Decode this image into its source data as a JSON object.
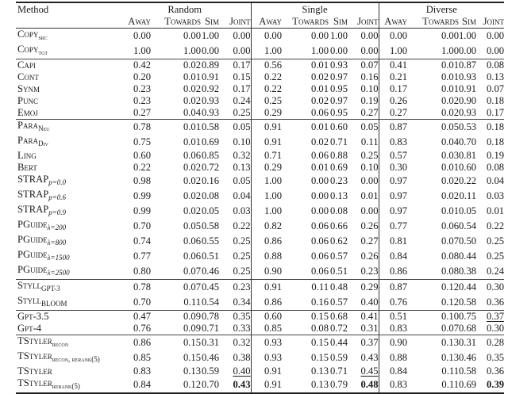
{
  "header": {
    "method": "Method",
    "groups": [
      "Random",
      "Single",
      "Diverse"
    ],
    "metrics": [
      "Away",
      "Towards",
      "Sim",
      "Joint"
    ]
  },
  "groups_of_rows": [
    [
      {
        "base": "Copy",
        "sub": "src",
        "values": [
          "0.00",
          "0.00",
          "1.00",
          "0.00",
          "0.00",
          "0.00",
          "1.00",
          "0.00",
          "0.00",
          "0.00",
          "1.00",
          "0.00"
        ]
      },
      {
        "base": "Copy",
        "sub": "tgt",
        "values": [
          "1.00",
          "1.00",
          "0.00",
          "0.00",
          "1.00",
          "1.00",
          "0.00",
          "0.00",
          "1.00",
          "1.00",
          "0.00",
          "0.00"
        ]
      }
    ],
    [
      {
        "base": "Capi",
        "values": [
          "0.42",
          "0.02",
          "0.89",
          "0.17",
          "0.56",
          "0.01",
          "0.93",
          "0.07",
          "0.41",
          "0.01",
          "0.87",
          "0.08"
        ]
      },
      {
        "base": "Cont",
        "values": [
          "0.20",
          "0.01",
          "0.91",
          "0.15",
          "0.22",
          "0.02",
          "0.97",
          "0.16",
          "0.21",
          "0.01",
          "0.93",
          "0.13"
        ]
      },
      {
        "base": "Synm",
        "values": [
          "0.23",
          "0.02",
          "0.92",
          "0.17",
          "0.22",
          "0.01",
          "0.95",
          "0.10",
          "0.17",
          "0.01",
          "0.91",
          "0.07"
        ]
      },
      {
        "base": "Punc",
        "values": [
          "0.23",
          "0.02",
          "0.93",
          "0.24",
          "0.25",
          "0.02",
          "0.97",
          "0.19",
          "0.26",
          "0.02",
          "0.90",
          "0.18"
        ]
      },
      {
        "base": "Emoj",
        "values": [
          "0.27",
          "0.04",
          "0.93",
          "0.25",
          "0.29",
          "0.06",
          "0.95",
          "0.27",
          "0.27",
          "0.02",
          "0.93",
          "0.17"
        ]
      }
    ],
    [
      {
        "base": "Para",
        "sub": "Neu",
        "values": [
          "0.78",
          "0.01",
          "0.58",
          "0.05",
          "0.91",
          "0.01",
          "0.60",
          "0.05",
          "0.87",
          "0.05",
          "0.53",
          "0.18"
        ]
      },
      {
        "base": "Para",
        "sub": "Div",
        "values": [
          "0.75",
          "0.01",
          "0.69",
          "0.10",
          "0.91",
          "0.02",
          "0.71",
          "0.11",
          "0.83",
          "0.04",
          "0.70",
          "0.18"
        ]
      },
      {
        "base": "Ling",
        "values": [
          "0.60",
          "0.06",
          "0.85",
          "0.32",
          "0.71",
          "0.06",
          "0.88",
          "0.25",
          "0.57",
          "0.03",
          "0.81",
          "0.19"
        ]
      },
      {
        "base": "Bert",
        "values": [
          "0.22",
          "0.02",
          "0.72",
          "0.13",
          "0.29",
          "0.01",
          "0.69",
          "0.10",
          "0.30",
          "0.01",
          "0.60",
          "0.08"
        ]
      },
      {
        "base": "STRAP",
        "sub": "p=0.0",
        "math": true,
        "values": [
          "0.98",
          "0.02",
          "0.16",
          "0.05",
          "1.00",
          "0.00",
          "0.23",
          "0.00",
          "0.97",
          "0.02",
          "0.22",
          "0.04"
        ]
      },
      {
        "base": "STRAP",
        "sub": "p=0.6",
        "math": true,
        "values": [
          "0.99",
          "0.02",
          "0.08",
          "0.04",
          "1.00",
          "0.00",
          "0.13",
          "0.01",
          "0.97",
          "0.02",
          "0.11",
          "0.03"
        ]
      },
      {
        "base": "STRAP",
        "sub": "p=0.9",
        "math": true,
        "values": [
          "0.99",
          "0.02",
          "0.05",
          "0.03",
          "1.00",
          "0.00",
          "0.08",
          "0.00",
          "0.97",
          "0.01",
          "0.05",
          "0.01"
        ]
      },
      {
        "base": "PGuide",
        "sub": "λ=200",
        "math": true,
        "values": [
          "0.70",
          "0.05",
          "0.58",
          "0.22",
          "0.82",
          "0.06",
          "0.66",
          "0.26",
          "0.77",
          "0.06",
          "0.54",
          "0.22"
        ]
      },
      {
        "base": "PGuide",
        "sub": "λ=800",
        "math": true,
        "values": [
          "0.74",
          "0.06",
          "0.55",
          "0.25",
          "0.86",
          "0.06",
          "0.62",
          "0.27",
          "0.81",
          "0.07",
          "0.50",
          "0.25"
        ]
      },
      {
        "base": "PGuide",
        "sub": "λ=1500",
        "math": true,
        "values": [
          "0.77",
          "0.06",
          "0.51",
          "0.25",
          "0.88",
          "0.06",
          "0.57",
          "0.26",
          "0.84",
          "0.08",
          "0.44",
          "0.25"
        ]
      },
      {
        "base": "PGuide",
        "sub": "λ=2500",
        "math": true,
        "values": [
          "0.80",
          "0.07",
          "0.46",
          "0.25",
          "0.90",
          "0.06",
          "0.51",
          "0.23",
          "0.86",
          "0.08",
          "0.38",
          "0.24"
        ]
      }
    ],
    [
      {
        "base": "Styll",
        "sub": "GPT-3",
        "values": [
          "0.78",
          "0.07",
          "0.45",
          "0.23",
          "0.91",
          "0.11",
          "0.48",
          "0.29",
          "0.87",
          "0.12",
          "0.44",
          "0.30"
        ]
      },
      {
        "base": "Styll",
        "sub": "BLOOM",
        "values": [
          "0.70",
          "0.11",
          "0.54",
          "0.34",
          "0.86",
          "0.16",
          "0.57",
          "0.40",
          "0.76",
          "0.12",
          "0.58",
          "0.36"
        ]
      }
    ],
    [
      {
        "base": "Gpt-3.5",
        "values": [
          "0.47",
          "0.09",
          "0.78",
          "0.35",
          "0.60",
          "0.15",
          "0.68",
          "0.41",
          "0.51",
          "0.10",
          "0.75",
          "0.37"
        ],
        "underline": [
          11
        ]
      },
      {
        "base": "Gpt-4",
        "values": [
          "0.76",
          "0.09",
          "0.71",
          "0.33",
          "0.85",
          "0.08",
          "0.72",
          "0.31",
          "0.83",
          "0.07",
          "0.68",
          "0.30"
        ]
      }
    ],
    [
      {
        "base": "TStyler",
        "sub": "recon",
        "values": [
          "0.86",
          "0.15",
          "0.31",
          "0.32",
          "0.93",
          "0.15",
          "0.44",
          "0.37",
          "0.90",
          "0.13",
          "0.31",
          "0.28"
        ]
      },
      {
        "base": "TStyler",
        "sub": "recon, rerank(5)",
        "values": [
          "0.85",
          "0.15",
          "0.46",
          "0.38",
          "0.93",
          "0.15",
          "0.59",
          "0.43",
          "0.88",
          "0.13",
          "0.46",
          "0.35"
        ]
      },
      {
        "base": "TStyler",
        "values": [
          "0.83",
          "0.13",
          "0.59",
          "0.40",
          "0.91",
          "0.13",
          "0.71",
          "0.45",
          "0.84",
          "0.11",
          "0.58",
          "0.36"
        ],
        "underline": [
          3,
          7
        ]
      },
      {
        "base": "TStyler",
        "sub": "rerank(5)",
        "values": [
          "0.84",
          "0.12",
          "0.70",
          "0.43",
          "0.91",
          "0.13",
          "0.79",
          "0.48",
          "0.83",
          "0.11",
          "0.69",
          "0.39"
        ],
        "bold": [
          3,
          7,
          11
        ]
      }
    ]
  ]
}
